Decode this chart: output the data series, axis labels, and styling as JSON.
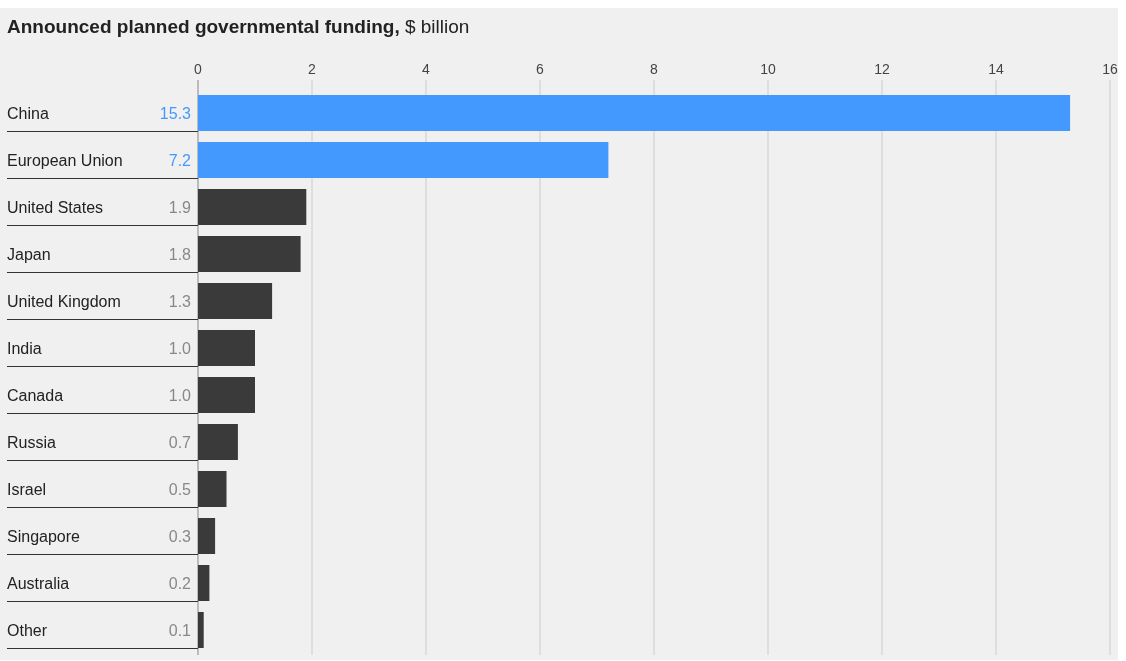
{
  "chart_data": {
    "type": "bar",
    "orientation": "horizontal",
    "title": "Announced planned governmental funding,",
    "subtitle": "$ billion",
    "categories": [
      "China",
      "European Union",
      "United States",
      "Japan",
      "United Kingdom",
      "India",
      "Canada",
      "Russia",
      "Israel",
      "Singapore",
      "Australia",
      "Other"
    ],
    "values": [
      15.3,
      7.2,
      1.9,
      1.8,
      1.3,
      1.0,
      1.0,
      0.7,
      0.5,
      0.3,
      0.2,
      0.1
    ],
    "value_labels": [
      "15.3",
      "7.2",
      "1.9",
      "1.8",
      "1.3",
      "1.0",
      "1.0",
      "0.7",
      "0.5",
      "0.3",
      "0.2",
      "0.1"
    ],
    "colors": [
      "#4499ff",
      "#4499ff",
      "#3a3a3a",
      "#3a3a3a",
      "#3a3a3a",
      "#3a3a3a",
      "#3a3a3a",
      "#3a3a3a",
      "#3a3a3a",
      "#3a3a3a",
      "#3a3a3a",
      "#3a3a3a"
    ],
    "xlim": [
      0,
      16
    ],
    "xticks": [
      0,
      2,
      4,
      6,
      8,
      10,
      12,
      14,
      16
    ],
    "grid": "x"
  }
}
